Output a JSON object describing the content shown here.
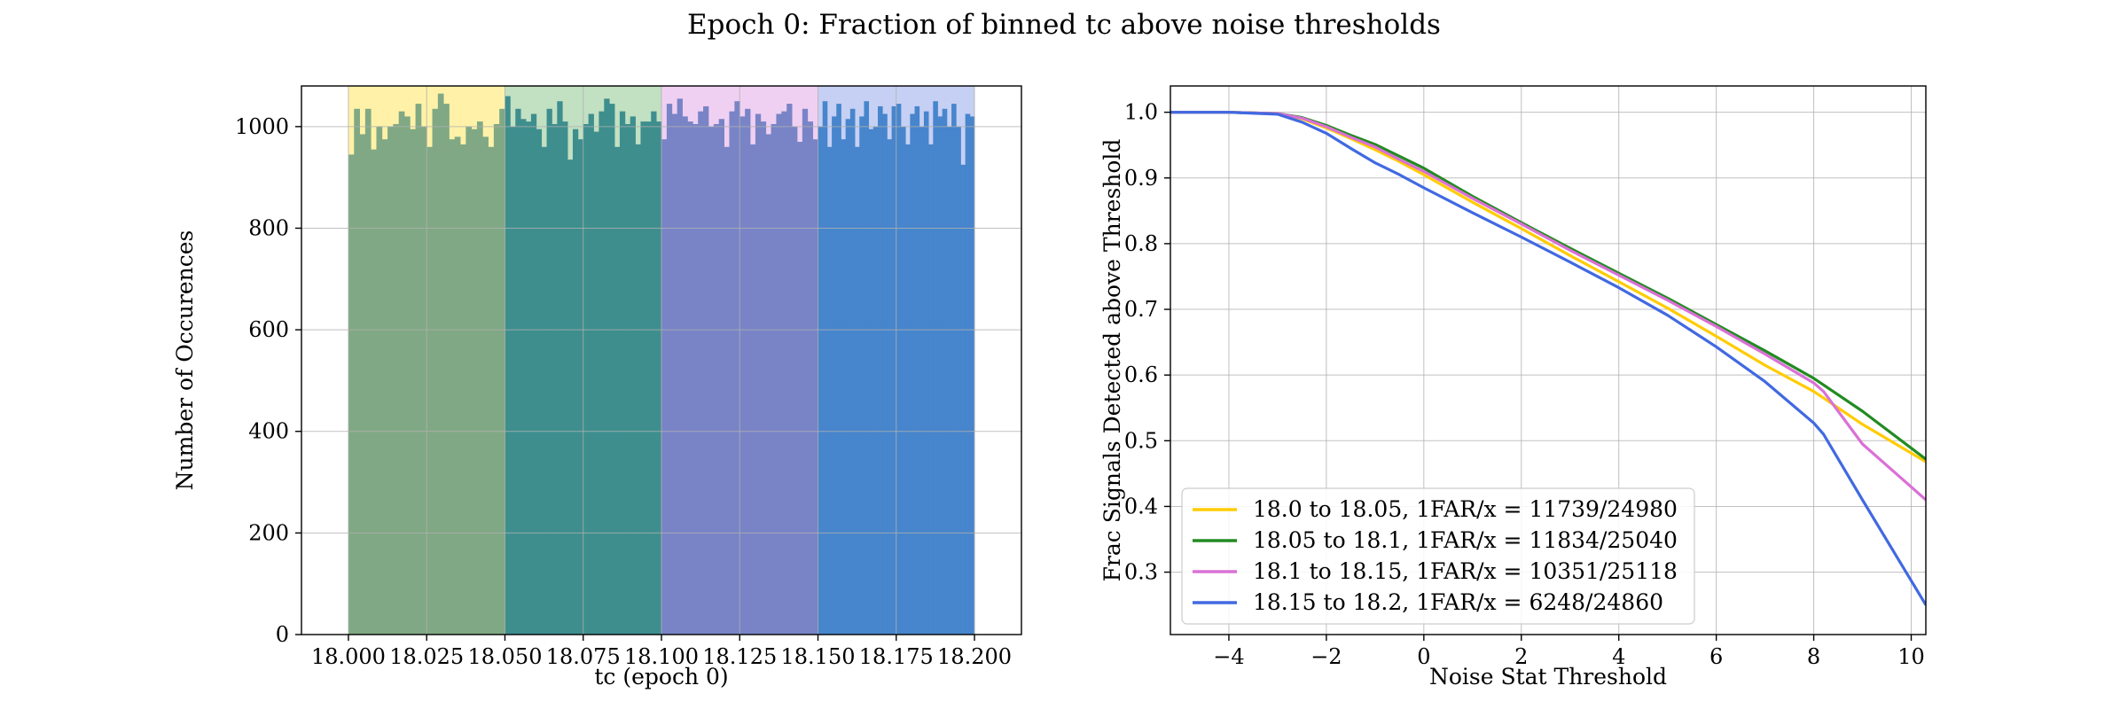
{
  "figure": {
    "title": "Epoch 0: Fraction of binned tc above noise thresholds"
  },
  "chart_data": [
    {
      "type": "bar",
      "xlabel": "tc (epoch 0)",
      "ylabel": "Number of Occurences",
      "xlim": [
        17.985,
        18.215
      ],
      "ylim": [
        0,
        1080
      ],
      "xticks": [
        18.0,
        18.025,
        18.05,
        18.075,
        18.1,
        18.125,
        18.15,
        18.175,
        18.2
      ],
      "xtick_labels": [
        "18.000",
        "18.025",
        "18.050",
        "18.075",
        "18.100",
        "18.125",
        "18.150",
        "18.175",
        "18.200"
      ],
      "yticks": [
        0,
        200,
        400,
        600,
        800,
        1000
      ],
      "ytick_labels": [
        "0",
        "200",
        "400",
        "600",
        "800",
        "1000"
      ],
      "grid": true,
      "bin_width": 0.0025,
      "regions": [
        {
          "x0": 18.0,
          "x1": 18.05,
          "shade": "#fff2a8",
          "color": "#80a884"
        },
        {
          "x0": 18.05,
          "x1": 18.1,
          "shade": "#c2e0c2",
          "color": "#3e8e8e"
        },
        {
          "x0": 18.1,
          "x1": 18.15,
          "shade": "#f0d0f2",
          "color": "#7884c6"
        },
        {
          "x0": 18.15,
          "x1": 18.2,
          "shade": "#c6d0f4",
          "color": "#4785cc"
        }
      ],
      "series": [
        {
          "values": [
            945,
            1035,
            985,
            1035,
            955,
            1000,
            975,
            1000,
            1005,
            1030,
            1020,
            995,
            1045,
            1000,
            960,
            1035,
            1065,
            1045,
            975,
            980,
            965,
            1000,
            995,
            1010,
            980,
            960,
            1005,
            1035
          ]
        },
        {
          "values": [
            1060,
            1000,
            1035,
            1015,
            1010,
            1025,
            995,
            960,
            1035,
            1005,
            1050,
            1010,
            935,
            995,
            975,
            1005,
            1025,
            990,
            1030,
            1055,
            1045,
            960,
            1030,
            1005,
            1020,
            965,
            1010,
            1010,
            1030,
            1010
          ]
        },
        {
          "values": [
            975,
            1045,
            1025,
            1055,
            1020,
            1010,
            1005,
            1030,
            1040,
            1000,
            1005,
            1015,
            960,
            1030,
            1050,
            1020,
            1035,
            965,
            1025,
            1010,
            985,
            1005,
            1025,
            1030,
            1045,
            1000,
            970,
            1035,
            1010,
            975
          ]
        },
        {
          "values": [
            1000,
            1050,
            960,
            1020,
            1045,
            975,
            1015,
            1035,
            960,
            1020,
            1050,
            995,
            1000,
            1040,
            1025,
            975,
            1040,
            1045,
            1000,
            965,
            1025,
            1040,
            1000,
            1030,
            965,
            1050,
            1020,
            1035,
            1000,
            1045,
            1000,
            925,
            1025,
            1020
          ]
        }
      ]
    },
    {
      "type": "line",
      "xlabel": "Noise Stat Threshold",
      "ylabel": "Frac Signals Detected above Threshold",
      "xlim": [
        -5.2,
        10.3
      ],
      "ylim": [
        0.205,
        1.04
      ],
      "xticks": [
        -4,
        -2,
        0,
        2,
        4,
        6,
        8,
        10
      ],
      "xtick_labels": [
        "−4",
        "−2",
        "0",
        "2",
        "4",
        "6",
        "8",
        "10"
      ],
      "yticks": [
        0.3,
        0.4,
        0.5,
        0.6,
        0.7,
        0.8,
        0.9,
        1.0
      ],
      "ytick_labels": [
        "0.3",
        "0.4",
        "0.5",
        "0.6",
        "0.7",
        "0.8",
        "0.9",
        "1.0"
      ],
      "grid": true,
      "legend_position": "lower-left",
      "x": [
        -5.2,
        -4,
        -3,
        -2.5,
        -2,
        -1.5,
        -1,
        -0.5,
        0,
        1,
        2,
        3,
        4,
        5,
        6,
        7,
        8,
        8.2,
        9,
        10.3
      ],
      "series": [
        {
          "name": "18.0 to 18.05, 1FAR/x = 11739/24980",
          "color": "#ffcc00",
          "values": [
            1.0,
            1.0,
            0.998,
            0.99,
            0.976,
            0.96,
            0.943,
            0.925,
            0.905,
            0.863,
            0.823,
            0.782,
            0.742,
            0.702,
            0.659,
            0.615,
            0.575,
            0.565,
            0.525,
            0.468
          ]
        },
        {
          "name": "18.05 to 18.1, 1FAR/x = 11834/25040",
          "color": "#228b22",
          "values": [
            1.0,
            1.0,
            0.998,
            0.992,
            0.98,
            0.965,
            0.951,
            0.933,
            0.915,
            0.872,
            0.832,
            0.793,
            0.755,
            0.717,
            0.677,
            0.637,
            0.595,
            0.585,
            0.545,
            0.472
          ]
        },
        {
          "name": "18.1 to 18.15, 1FAR/x = 10351/25118",
          "color": "#da70d6",
          "values": [
            1.0,
            1.0,
            0.998,
            0.991,
            0.978,
            0.962,
            0.947,
            0.928,
            0.91,
            0.869,
            0.83,
            0.79,
            0.752,
            0.714,
            0.674,
            0.632,
            0.588,
            0.575,
            0.495,
            0.41
          ]
        },
        {
          "name": "18.15 to 18.2, 1FAR/x = 6248/24860",
          "color": "#4169e1",
          "values": [
            1.0,
            1.0,
            0.997,
            0.985,
            0.968,
            0.945,
            0.923,
            0.905,
            0.885,
            0.847,
            0.81,
            0.772,
            0.733,
            0.691,
            0.643,
            0.59,
            0.527,
            0.51,
            0.41,
            0.25
          ]
        }
      ]
    }
  ]
}
